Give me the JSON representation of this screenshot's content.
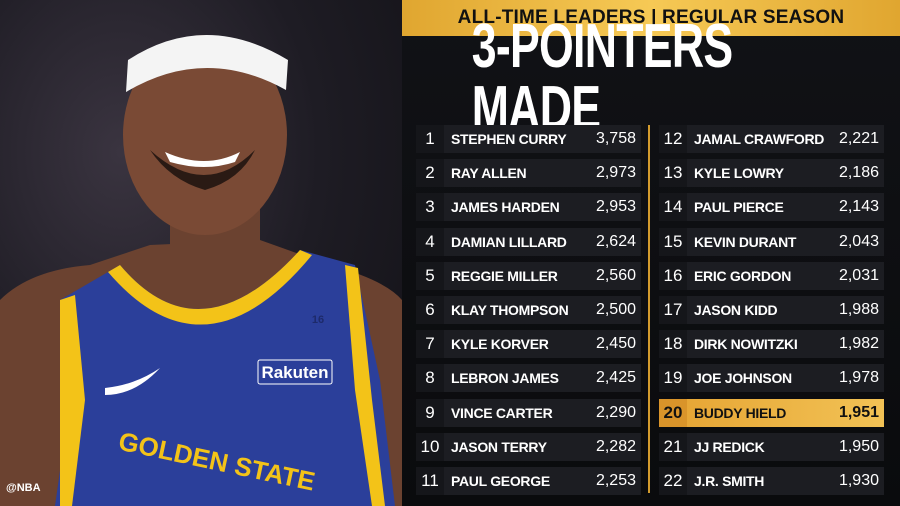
{
  "header": {
    "subtitle": "ALL-TIME LEADERS | REGULAR SEASON",
    "title": "3-POINTERS MADE"
  },
  "photo": {
    "sponsor": "Rakuten",
    "team_text": "GOLDEN STATE",
    "jersey_patch": "16",
    "watermark": "@NBA"
  },
  "colors": {
    "accent": "#f2c255",
    "jersey_blue": "#2b3f9a",
    "jersey_gold": "#f3c318"
  },
  "highlight_rank": 20,
  "left_column": [
    {
      "rank": "1",
      "name": "STEPHEN CURRY",
      "value": "3,758"
    },
    {
      "rank": "2",
      "name": "RAY ALLEN",
      "value": "2,973"
    },
    {
      "rank": "3",
      "name": "JAMES HARDEN",
      "value": "2,953"
    },
    {
      "rank": "4",
      "name": "DAMIAN LILLARD",
      "value": "2,624"
    },
    {
      "rank": "5",
      "name": "REGGIE MILLER",
      "value": "2,560"
    },
    {
      "rank": "6",
      "name": "KLAY THOMPSON",
      "value": "2,500"
    },
    {
      "rank": "7",
      "name": "KYLE KORVER",
      "value": "2,450"
    },
    {
      "rank": "8",
      "name": "LEBRON JAMES",
      "value": "2,425"
    },
    {
      "rank": "9",
      "name": "VINCE CARTER",
      "value": "2,290"
    },
    {
      "rank": "10",
      "name": "JASON TERRY",
      "value": "2,282"
    },
    {
      "rank": "11",
      "name": "PAUL GEORGE",
      "value": "2,253"
    }
  ],
  "right_column": [
    {
      "rank": "12",
      "name": "JAMAL CRAWFORD",
      "value": "2,221"
    },
    {
      "rank": "13",
      "name": "KYLE LOWRY",
      "value": "2,186"
    },
    {
      "rank": "14",
      "name": "PAUL PIERCE",
      "value": "2,143"
    },
    {
      "rank": "15",
      "name": "KEVIN DURANT",
      "value": "2,043"
    },
    {
      "rank": "16",
      "name": "ERIC GORDON",
      "value": "2,031"
    },
    {
      "rank": "17",
      "name": "JASON KIDD",
      "value": "1,988"
    },
    {
      "rank": "18",
      "name": "DIRK NOWITZKI",
      "value": "1,982"
    },
    {
      "rank": "19",
      "name": "JOE JOHNSON",
      "value": "1,978"
    },
    {
      "rank": "20",
      "name": "BUDDY HIELD",
      "value": "1,951"
    },
    {
      "rank": "21",
      "name": "JJ REDICK",
      "value": "1,950"
    },
    {
      "rank": "22",
      "name": "J.R. SMITH",
      "value": "1,930"
    }
  ]
}
